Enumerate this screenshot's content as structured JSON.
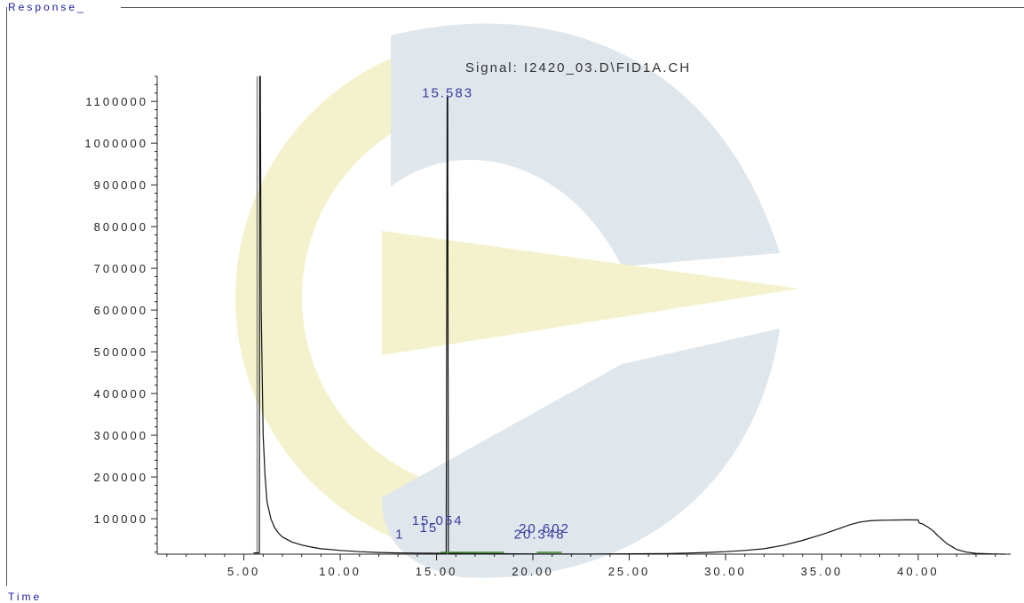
{
  "header": {
    "y_label": "Response_",
    "x_label": "Time"
  },
  "chart_data": {
    "type": "line",
    "title": "Signal: I2420_03.D\\FID1A.CH",
    "xlabel": "Time",
    "ylabel": "Response_",
    "xlim": [
      0.5,
      44.8
    ],
    "ylim": [
      15000,
      1160000
    ],
    "x_ticks": [
      "5.00",
      "10.00",
      "15.00",
      "20.00",
      "25.00",
      "30.00",
      "35.00",
      "40.00"
    ],
    "y_ticks": [
      "100000",
      "200000",
      "300000",
      "400000",
      "500000",
      "600000",
      "700000",
      "800000",
      "900000",
      "1000000",
      "1100000"
    ],
    "series": [
      {
        "color": "#111111",
        "x": [
          5.5,
          5.6,
          5.7,
          5.8,
          5.82,
          5.85,
          5.9,
          6.0,
          6.1,
          6.2,
          6.4,
          6.6,
          6.8,
          7.0,
          7.5,
          8.0,
          8.5,
          9.0,
          10.0,
          11.0,
          12.0,
          13.0,
          14.0,
          15.0,
          15.5,
          15.55,
          15.58,
          15.61,
          15.7,
          16.0,
          17.0,
          18.0,
          19.0,
          20.0,
          21.0,
          22.0,
          23.0,
          24.0,
          25.0,
          26.0,
          27.0,
          28.0,
          29.0,
          30.0,
          31.0,
          32.0,
          33.0,
          34.0,
          35.0,
          35.5,
          36.0,
          36.5,
          37.0,
          37.5,
          38.0,
          38.5,
          39.0,
          39.5,
          40.0,
          40.05,
          40.1,
          40.2,
          40.5,
          40.8,
          41.0,
          41.5,
          42.0,
          42.5,
          43.0,
          43.5,
          44.0,
          44.5
        ],
        "values": [
          18000,
          18000,
          18000,
          18000,
          1160000,
          1160000,
          600000,
          300000,
          200000,
          140000,
          100000,
          78000,
          65000,
          56000,
          44000,
          37000,
          32000,
          28000,
          24000,
          21000,
          19000,
          18000,
          17500,
          17200,
          17200,
          1110000,
          1110000,
          17200,
          17000,
          17000,
          16500,
          16000,
          15800,
          15600,
          15500,
          15500,
          15500,
          15600,
          15800,
          16000,
          16500,
          17500,
          19000,
          21000,
          24000,
          28000,
          36000,
          48000,
          62000,
          70000,
          78000,
          86000,
          92000,
          95000,
          96000,
          96500,
          97000,
          97200,
          97000,
          90000,
          89000,
          88000,
          80000,
          70000,
          60000,
          40000,
          26000,
          20000,
          17000,
          16000,
          15500,
          15000
        ]
      }
    ],
    "annotations": [
      {
        "text": "15.583",
        "x": 15.58,
        "y": 1110000
      },
      {
        "text": "15.054",
        "x": 15.05,
        "y": 85000
      },
      {
        "text": "20.602",
        "x": 20.6,
        "y": 66000
      },
      {
        "text": "20.348",
        "x": 20.35,
        "y": 52000
      },
      {
        "text": "15",
        "x": 14.6,
        "y": 68000
      },
      {
        "text": "1",
        "x": 13.1,
        "y": 52000
      }
    ],
    "watermark_colors": {
      "yellow": "#f4f2cc",
      "blue": "#dfe6ec"
    }
  }
}
